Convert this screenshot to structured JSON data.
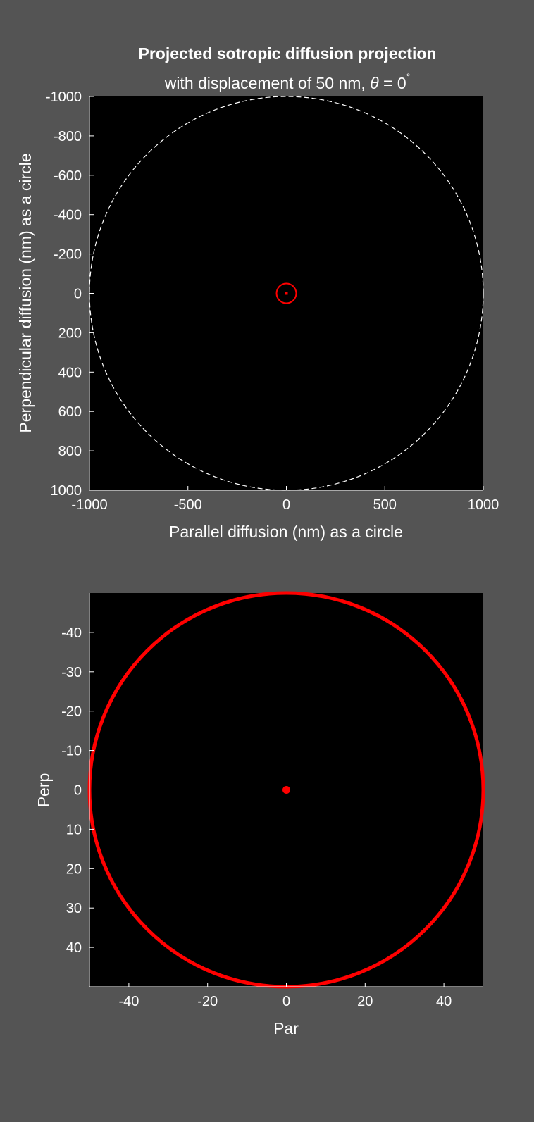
{
  "colors": {
    "figure_background": "#545454",
    "axes_background": "#000000",
    "text": "#ffffff",
    "accent_red": "#ff0000",
    "dashed_circle": "#ffffff"
  },
  "chart_data": [
    {
      "type": "scatter",
      "title": "Projected sotropic diffusion projection",
      "subtitle_prefix": "with displacement of 50 nm, ",
      "subtitle_symbol": "θ",
      "subtitle_suffix": " = 0",
      "subtitle_superscript": "°",
      "xlabel": "Parallel diffusion (nm) as a circle",
      "ylabel": "Perpendicular diffusion (nm) as a circle",
      "xlim": [
        -1000,
        1000
      ],
      "ylim": [
        -1000,
        1000
      ],
      "y_reversed": true,
      "grid": false,
      "xticks": [
        -1000,
        -500,
        0,
        500,
        1000
      ],
      "yticks": [
        -1000,
        -800,
        -600,
        -400,
        -200,
        0,
        200,
        400,
        600,
        800,
        1000
      ],
      "circles": [
        {
          "center": [
            0,
            0
          ],
          "radius": 1000,
          "color": "#ffffff",
          "style": "dashed"
        },
        {
          "center": [
            0,
            0
          ],
          "radius": 50,
          "color": "#ff0000",
          "style": "solid"
        }
      ],
      "points": [
        {
          "x": 0,
          "y": 0,
          "color": "#ff0000"
        }
      ]
    },
    {
      "type": "scatter",
      "xlabel": "Par",
      "ylabel": "Perp",
      "xlim": [
        -50,
        50
      ],
      "ylim": [
        -50,
        50
      ],
      "y_reversed": true,
      "grid": false,
      "xticks": [
        -40,
        -20,
        0,
        20,
        40
      ],
      "yticks": [
        -40,
        -30,
        -20,
        -10,
        0,
        10,
        20,
        30,
        40
      ],
      "circles": [
        {
          "center": [
            0,
            0
          ],
          "radius": 50,
          "color": "#ff0000",
          "style": "solid"
        }
      ],
      "points": [
        {
          "x": 0,
          "y": 0,
          "color": "#ff0000"
        }
      ]
    }
  ]
}
